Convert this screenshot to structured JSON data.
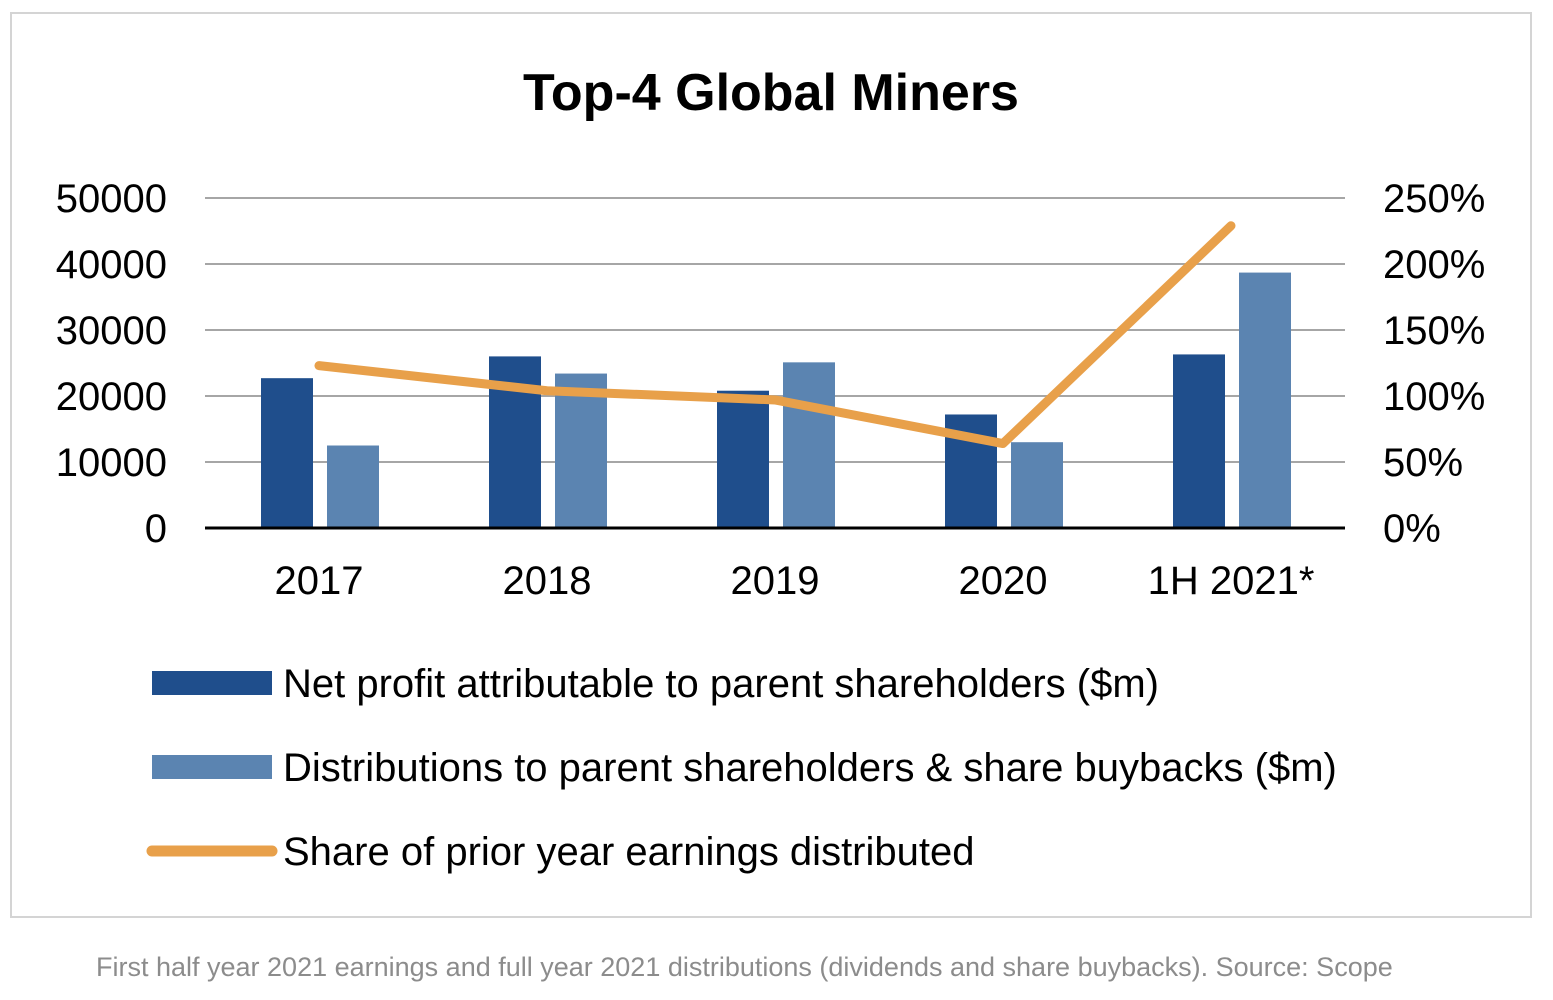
{
  "chart_data": {
    "type": "bar",
    "title": "Top-4 Global Miners",
    "categories": [
      "2017",
      "2018",
      "2019",
      "2020",
      "1H 2021*"
    ],
    "series": [
      {
        "name": "Net profit attributable to parent shareholders ($m)",
        "type": "bar",
        "axis": "left",
        "color": "#1f4e8c",
        "values": [
          22700,
          26000,
          20800,
          17200,
          26300
        ]
      },
      {
        "name": "Distributions to parent shareholders & share buybacks ($m)",
        "type": "bar",
        "axis": "left",
        "color": "#5b84b1",
        "values": [
          12500,
          23400,
          25100,
          13000,
          38700
        ]
      },
      {
        "name": "Share of prior year earnings distributed",
        "type": "line",
        "axis": "right",
        "color": "#e8a04a",
        "values": [
          123,
          104,
          97,
          64,
          229
        ]
      }
    ],
    "y_left": {
      "min": 0,
      "max": 50000,
      "ticks": [
        0,
        10000,
        20000,
        30000,
        40000,
        50000
      ],
      "tick_labels": [
        "0",
        "10000",
        "20000",
        "30000",
        "40000",
        "50000"
      ]
    },
    "y_right": {
      "min": 0,
      "max": 250,
      "ticks": [
        0,
        50,
        100,
        150,
        200,
        250
      ],
      "tick_labels": [
        "0%",
        "50%",
        "100%",
        "150%",
        "200%",
        "250%"
      ]
    },
    "grid": true,
    "legend_position": "bottom"
  },
  "footnote": "First half year 2021 earnings and full year 2021 distributions (dividends and share buybacks). Source: Scope"
}
